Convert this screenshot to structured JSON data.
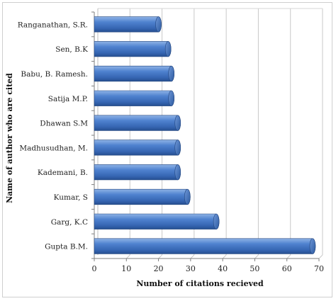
{
  "chart_data": {
    "type": "bar",
    "orientation": "horizontal",
    "categories": [
      "Ranganathan,  S.R.",
      "Sen, B.K",
      "Babu, B. Ramesh.",
      "Satija M.P.",
      "Dhawan S.M",
      "Madhusudhan, M.",
      "Kademani, B.",
      "Kumar, S",
      "Garg, K.C",
      "Gupta B.M."
    ],
    "values": [
      20,
      23,
      24,
      24,
      26,
      26,
      26,
      29,
      38,
      68
    ],
    "xlabel": "Number of citations recieved",
    "ylabel": "Name of author who are cited",
    "xlim": [
      0,
      70
    ],
    "xticks": [
      "0",
      "10",
      "20",
      "30",
      "40",
      "50",
      "60",
      "70"
    ],
    "grid": "vertical",
    "legend": "none",
    "bar_color": "#3f72bf",
    "style": "3d-cylinder"
  }
}
